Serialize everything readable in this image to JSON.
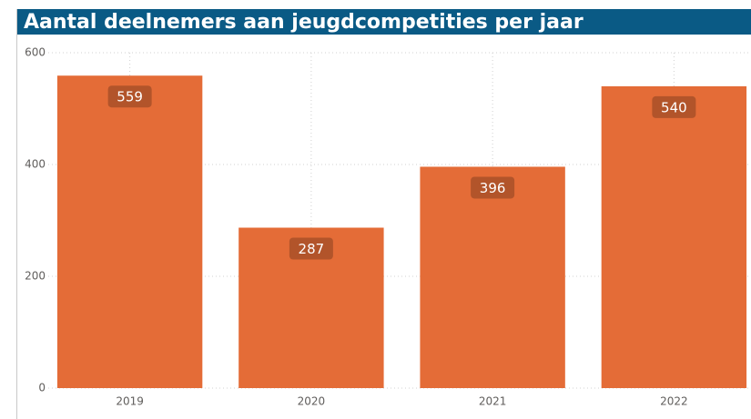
{
  "chart_data": {
    "type": "bar",
    "title": "Aantal deelnemers aan jeugdcompetities per jaar",
    "categories": [
      "2019",
      "2020",
      "2021",
      "2022"
    ],
    "values": [
      559,
      287,
      396,
      540
    ],
    "color": "#e46c37",
    "ylim": [
      0,
      600
    ],
    "yticks": [
      0,
      200,
      400,
      600
    ],
    "grid": true
  }
}
